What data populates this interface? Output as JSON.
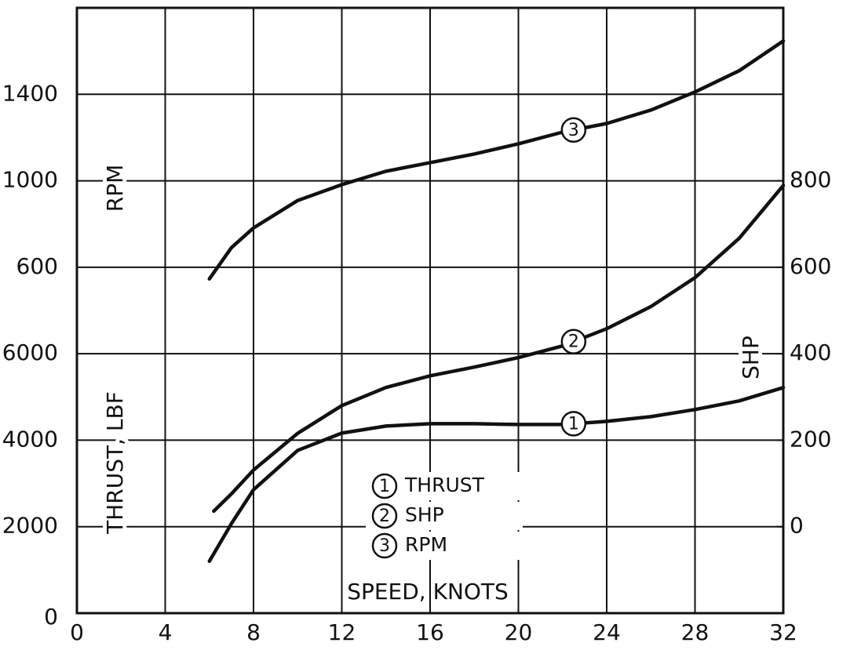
{
  "chart_data": {
    "type": "line",
    "x_label": "SPEED, KNOTS",
    "y_label": "THRUST, LBF",
    "y2_label": "SHP",
    "y3_label": "RPM",
    "xlim": [
      0,
      32
    ],
    "xticks": [
      0,
      4,
      8,
      12,
      16,
      20,
      24,
      28,
      32
    ],
    "ylim": [
      0,
      14000
    ],
    "yticks": [
      0,
      2000,
      4000,
      6000
    ],
    "y2lim": [
      -200,
      1200
    ],
    "y2ticks": [
      0,
      200,
      400,
      600,
      800
    ],
    "y3lim": [
      -1000,
      1800
    ],
    "y3ticks": [
      600,
      1000,
      1400
    ],
    "grid": true,
    "series": [
      {
        "name": "THRUST",
        "marker": "1",
        "color": "#111111",
        "axis": "y",
        "x": [
          6,
          7,
          8,
          10,
          12,
          14,
          16,
          18,
          20,
          22,
          24,
          26,
          28,
          30,
          32
        ],
        "values": [
          1200,
          2073,
          2855,
          3764,
          4164,
          4327,
          4382,
          4382,
          4364,
          4364,
          4436,
          4545,
          4709,
          4909,
          5218
        ]
      },
      {
        "name": "SHP",
        "marker": "2",
        "color": "#111111",
        "axis": "y2",
        "x": [
          6.2,
          7,
          8,
          10,
          12,
          14,
          16,
          18,
          20,
          22,
          24,
          26,
          28,
          30,
          32
        ],
        "values": [
          36,
          76,
          131,
          216,
          280,
          322,
          349,
          369,
          391,
          418,
          458,
          509,
          576,
          667,
          789
        ]
      },
      {
        "name": "RPM",
        "marker": "3",
        "color": "#111111",
        "axis": "y3",
        "x": [
          6,
          7,
          8,
          10,
          12,
          14,
          16,
          18,
          20,
          22,
          24,
          26,
          28,
          30,
          32
        ],
        "values": [
          546,
          691,
          782,
          909,
          982,
          1044,
          1084,
          1124,
          1171,
          1225,
          1265,
          1327,
          1411,
          1509,
          1647
        ]
      }
    ]
  }
}
